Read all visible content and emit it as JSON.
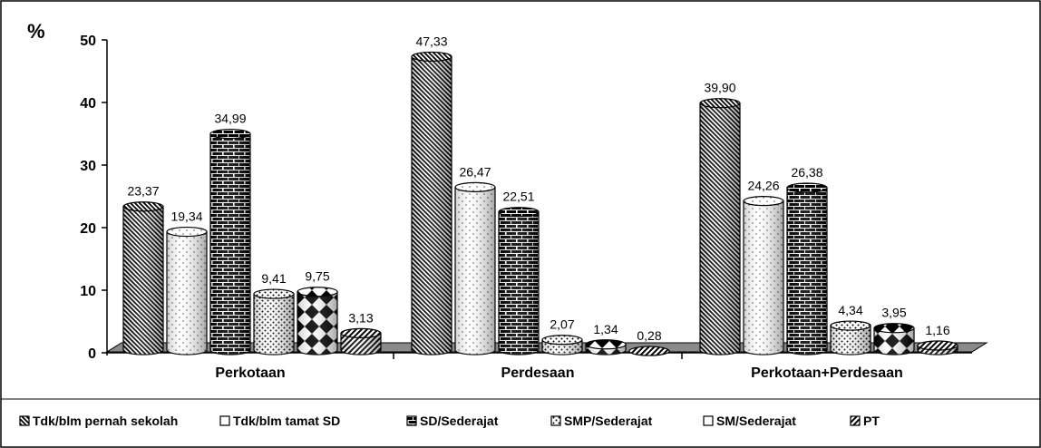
{
  "chart_data": {
    "type": "bar",
    "unit_label": "%",
    "categories": [
      "Perkotaan",
      "Perdesaan",
      "Perkotaan+Perdesaan"
    ],
    "series": [
      {
        "name": "Tdk/blm pernah sekolah",
        "values": [
          23.37,
          47.33,
          39.9
        ],
        "labels": [
          "23,37",
          "47,33",
          "39,90"
        ]
      },
      {
        "name": "Tdk/blm tamat SD",
        "values": [
          19.34,
          26.47,
          24.26
        ],
        "labels": [
          "19,34",
          "26,47",
          "24,26"
        ]
      },
      {
        "name": "SD/Sederajat",
        "values": [
          34.99,
          22.51,
          26.38
        ],
        "labels": [
          "34,99",
          "22,51",
          "26,38"
        ]
      },
      {
        "name": "SMP/Sederajat",
        "values": [
          9.41,
          2.07,
          4.34
        ],
        "labels": [
          "9,41",
          "2,07",
          "4,34"
        ]
      },
      {
        "name": "SM/Sederajat",
        "values": [
          9.75,
          1.34,
          3.95
        ],
        "labels": [
          "9,75",
          "1,34",
          "3,95"
        ]
      },
      {
        "name": "PT",
        "values": [
          3.13,
          0.28,
          1.16
        ],
        "labels": [
          "3,13",
          "0,28",
          "1,16"
        ]
      }
    ],
    "y_ticks": [
      "0",
      "10",
      "20",
      "30",
      "40",
      "50"
    ],
    "ylim": [
      0,
      50
    ],
    "legend_position": "bottom",
    "grid": false,
    "style": "3d-cylinder"
  }
}
